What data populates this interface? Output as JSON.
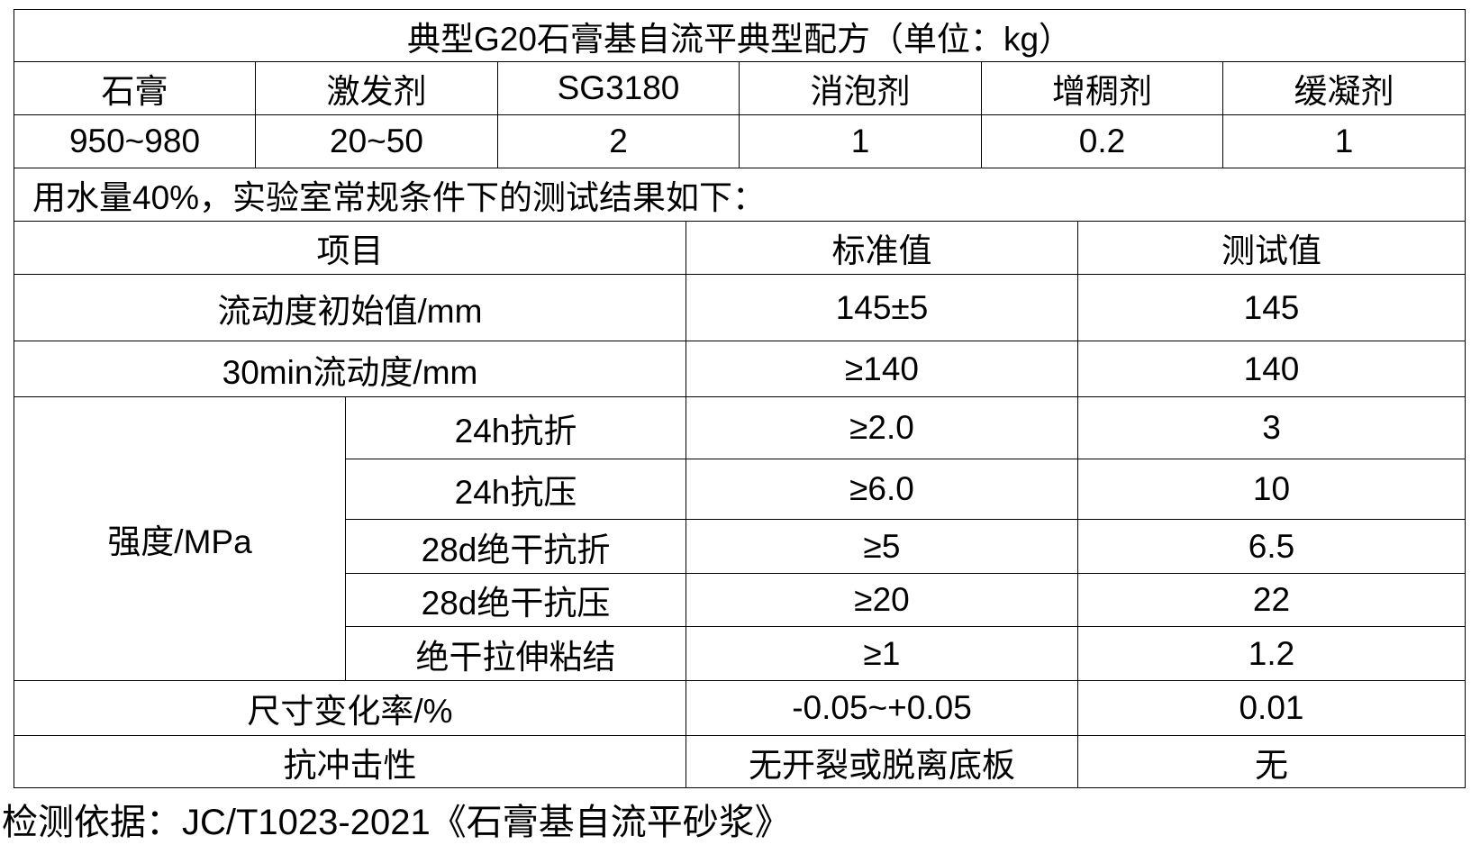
{
  "formula": {
    "title": "典型G20石膏基自流平典型配方（单位：kg）",
    "headers": [
      "石膏",
      "激发剂",
      "SG3180",
      "消泡剂",
      "增稠剂",
      "缓凝剂"
    ],
    "values": [
      "950~980",
      "20~50",
      "2",
      "1",
      "0.2",
      "1"
    ],
    "note": "用水量40%，实验室常规条件下的测试结果如下："
  },
  "results": {
    "headers": [
      "项目",
      "标准值",
      "测试值"
    ],
    "rows": [
      {
        "item": "流动度初始值/mm",
        "standard": "145±5",
        "test": "145"
      },
      {
        "item": "30min流动度/mm",
        "standard": "≥140",
        "test": "140"
      }
    ],
    "strength_label": "强度/MPa",
    "strength_rows": [
      {
        "item": "24h抗折",
        "standard": "≥2.0",
        "test": "3"
      },
      {
        "item": "24h抗压",
        "standard": "≥6.0",
        "test": "10"
      },
      {
        "item": "28d绝干抗折",
        "standard": "≥5",
        "test": "6.5"
      },
      {
        "item": "28d绝干抗压",
        "standard": "≥20",
        "test": "22"
      },
      {
        "item": "绝干拉伸粘结",
        "standard": "≥1",
        "test": "1.2"
      }
    ],
    "tail_rows": [
      {
        "item": "尺寸变化率/%",
        "standard": "-0.05~+0.05",
        "test": "0.01"
      },
      {
        "item": "抗冲击性",
        "standard": "无开裂或脱离底板",
        "test": "无"
      }
    ]
  },
  "footer": "检测依据：JC/T1023-2021《石膏基自流平砂浆》"
}
